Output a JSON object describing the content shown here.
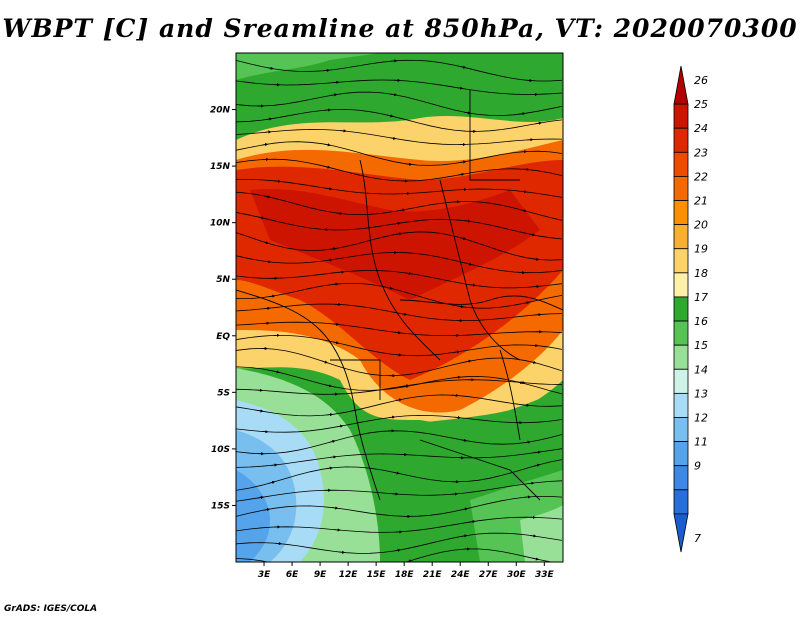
{
  "title": "WBPT [C] and Sreamline at 850hPa, VT: 2020070300",
  "footer": "GrADS: IGES/COLA",
  "map": {
    "lat_range": [
      -20,
      25
    ],
    "lon_range": [
      0,
      35
    ],
    "lat_labels": [
      "20N",
      "15N",
      "10N",
      "5N",
      "EQ",
      "5S",
      "10S",
      "15S"
    ],
    "lat_values": [
      20,
      15,
      10,
      5,
      0,
      -5,
      -10,
      -15
    ],
    "lon_labels": [
      "3E",
      "6E",
      "9E",
      "12E",
      "15E",
      "18E",
      "21E",
      "24E",
      "27E",
      "30E",
      "33E"
    ],
    "lon_values": [
      3,
      6,
      9,
      12,
      15,
      18,
      21,
      24,
      27,
      30,
      33
    ]
  },
  "colorbar": {
    "labels": [
      "26",
      "25",
      "24",
      "23",
      "22",
      "21",
      "20",
      "19",
      "18",
      "17",
      "16",
      "15",
      "14",
      "13",
      "12",
      "11",
      "9",
      "7"
    ],
    "colors": [
      "#b30000",
      "#cc1400",
      "#e02800",
      "#ee4a00",
      "#f56a00",
      "#f89000",
      "#f9b030",
      "#fcd26a",
      "#fdf0a8",
      "#2ea82e",
      "#55c455",
      "#98e098",
      "#cff3e8",
      "#a8dcf6",
      "#78bff0",
      "#55a3ea",
      "#3c88e2",
      "#2770da",
      "#1a5dd0"
    ]
  }
}
